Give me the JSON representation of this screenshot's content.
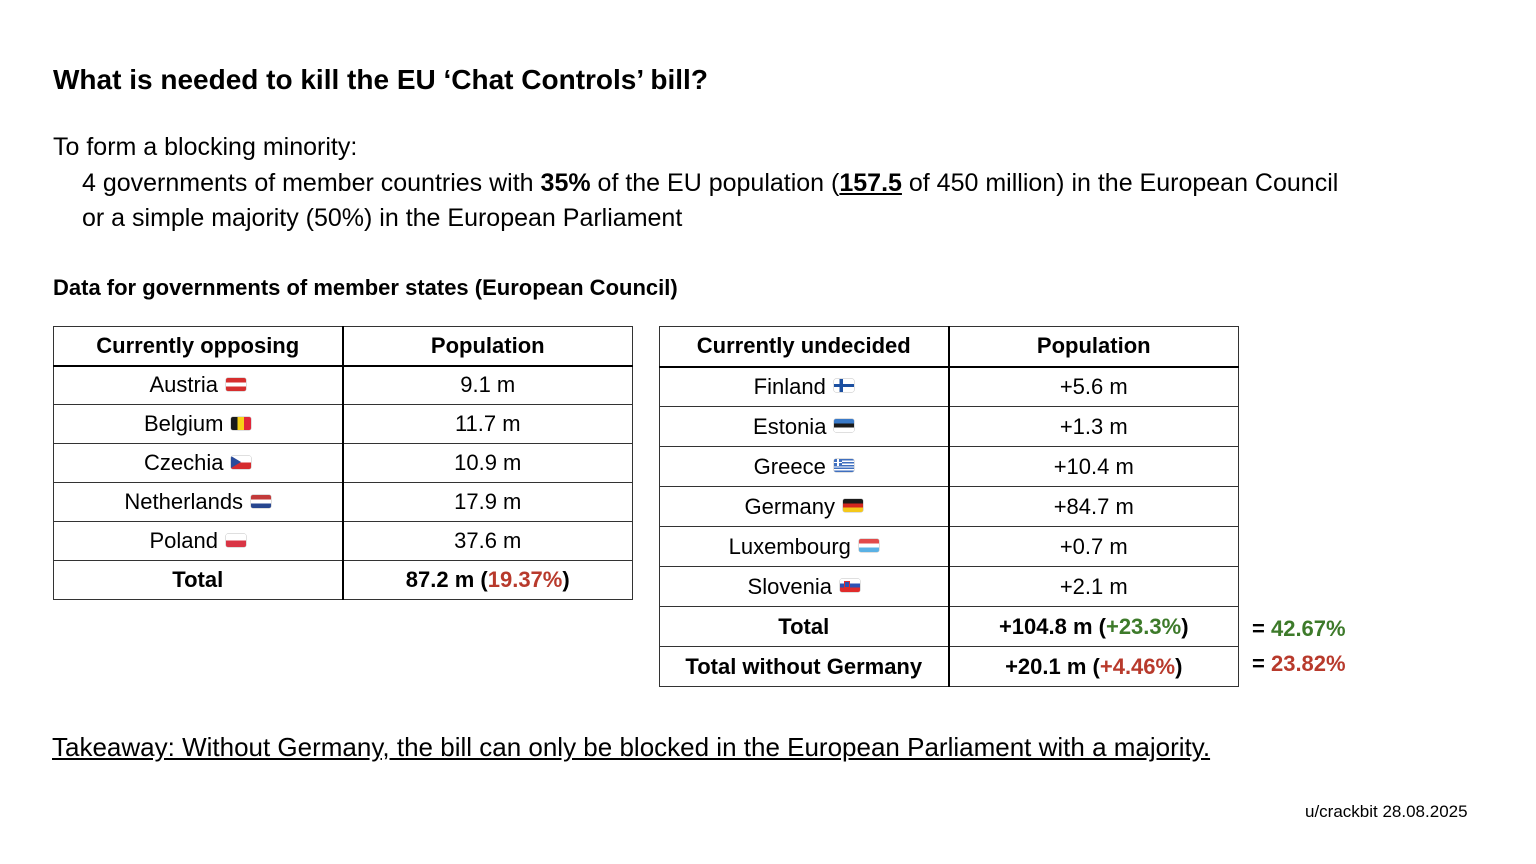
{
  "title": "What is needed to kill the EU ‘Chat Controls’ bill?",
  "intro": "To form a blocking minority:",
  "line1": {
    "part1": "4 governments of member countries with ",
    "pct": "35%",
    "part2": " of the EU population (",
    "amount": "157.5",
    "part3": " of 450 million) in the European Council"
  },
  "line2": "or a simple majority (50%) in the European Parliament",
  "subheading": "Data for governments of member states (European Council)",
  "opposing": {
    "headers": [
      "Currently opposing",
      "Population"
    ],
    "rows": [
      {
        "country": "Austria",
        "flag": "flag-austria",
        "pop": "9.1 m"
      },
      {
        "country": "Belgium",
        "flag": "flag-belgium",
        "pop": "11.7 m"
      },
      {
        "country": "Czechia",
        "flag": "flag-czechia",
        "pop": "10.9 m"
      },
      {
        "country": "Netherlands",
        "flag": "flag-netherlands",
        "pop": "17.9 m"
      },
      {
        "country": "Poland",
        "flag": "flag-poland",
        "pop": "37.6 m"
      }
    ],
    "total": {
      "label": "Total",
      "value": "87.2 m (",
      "pct": "19.37%",
      "close": ")"
    }
  },
  "undecided": {
    "headers": [
      "Currently undecided",
      "Population"
    ],
    "rows": [
      {
        "country": "Finland",
        "flag": "flag-finland",
        "pop": "+5.6 m"
      },
      {
        "country": "Estonia",
        "flag": "flag-estonia",
        "pop": "+1.3 m"
      },
      {
        "country": "Greece",
        "flag": "flag-greece",
        "pop": "+10.4 m"
      },
      {
        "country": "Germany",
        "flag": "flag-germany",
        "pop": "+84.7 m"
      },
      {
        "country": "Luxembourg",
        "flag": "flag-luxembourg",
        "pop": "+0.7 m"
      },
      {
        "country": "Slovenia",
        "flag": "flag-slovenia",
        "pop": "+2.1 m"
      }
    ],
    "total": {
      "label": "Total",
      "value": "+104.8 m (",
      "pct": "+23.3%",
      "close": ")"
    },
    "total_wo": {
      "label": "Total without Germany",
      "value": "+20.1 m (",
      "pct": "+4.46%",
      "close": ")"
    }
  },
  "side_totals": {
    "eq1": "= ",
    "val1": "42.67%",
    "eq2": "= ",
    "val2": "23.82%"
  },
  "colors": {
    "red": "#b83a2c",
    "green": "#3d7a2a"
  },
  "takeaway": "Takeaway: Without Germany, the bill can only be blocked in the European Parliament with a majority.",
  "credit": "u/crackbit 28.08.2025"
}
